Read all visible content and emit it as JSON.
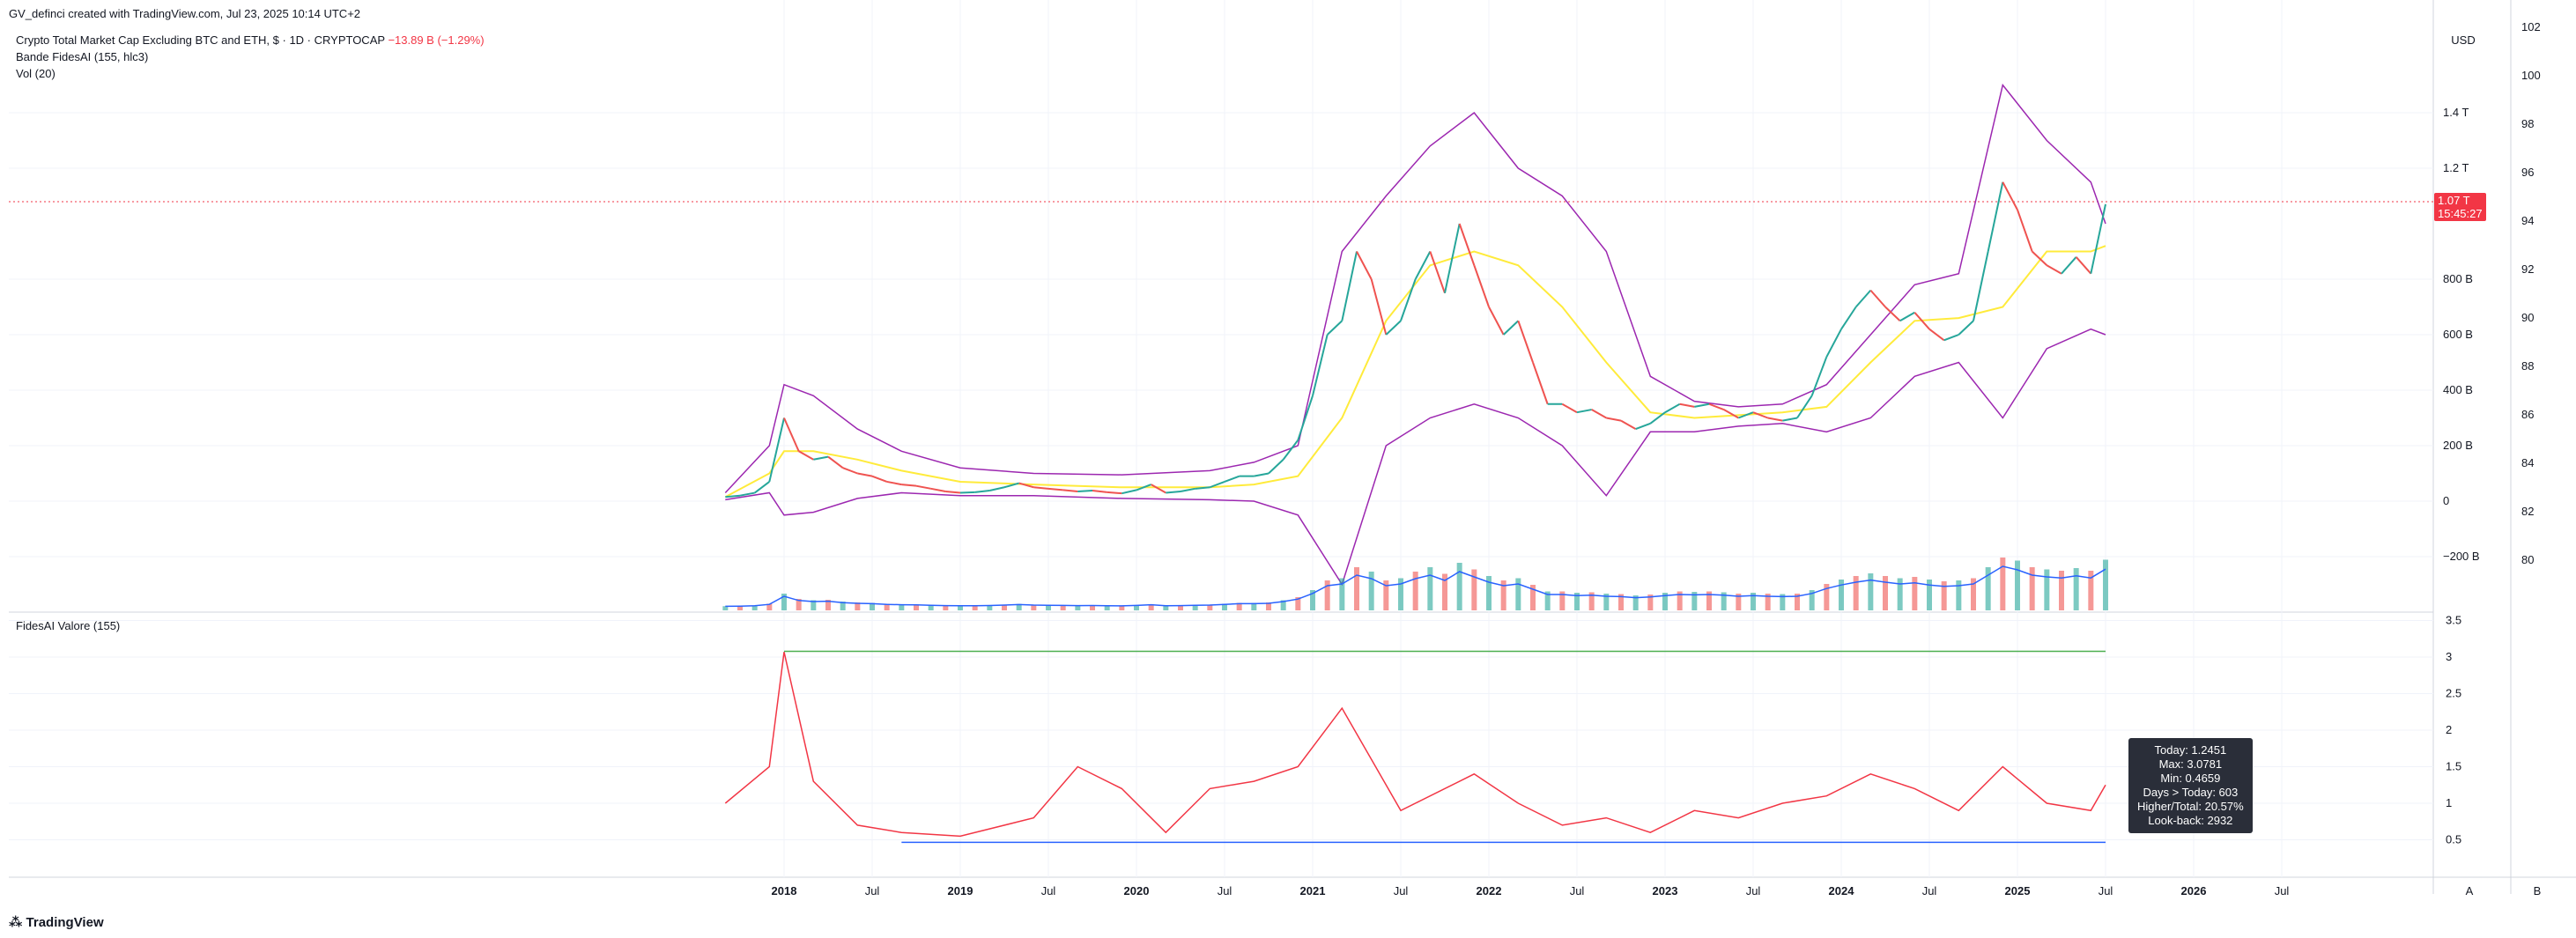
{
  "header": {
    "credit": "GV_definci created with TradingView.com, Jul 23, 2025 10:14 UTC+2",
    "symbol_title": "Crypto Total Market Cap Excluding BTC and ETH, $ · 1D · CRYPTOCAP",
    "change": "−13.89 B (−1.29%)",
    "indicator1": "Bande FidesAI (155, hlc3)",
    "indicator2": "Vol (20)",
    "pane2_title": "FidesAI Valore (155)"
  },
  "currency_button": "USD",
  "footer": {
    "logo_text": "TradingView",
    "auto_button": "A",
    "scale_button": "B"
  },
  "price_tag": {
    "value": "1.07 T",
    "countdown": "15:45:27"
  },
  "info_box": {
    "lines": [
      "Today: 1.2451",
      "Max: 3.0781",
      "Min: 0.4659",
      "Days > Today: 603",
      "Higher/Total: 20.57%",
      "Look-back: 2932"
    ]
  },
  "colors": {
    "price_up": "#26a69a",
    "price_down": "#ef5350",
    "bands": "#9c27b0",
    "basis": "#ffeb3b",
    "volume_ma": "#2962ff",
    "valore": "#f23645",
    "max_line": "#4caf50",
    "min_line": "#2962ff",
    "grid": "#f0f3fa"
  },
  "chart_data": [
    {
      "type": "line",
      "name": "price",
      "x": [
        "2017-09",
        "2017-10",
        "2017-11",
        "2017-12",
        "2018-01",
        "2018-02",
        "2018-03",
        "2018-04",
        "2018-05",
        "2018-06",
        "2018-07",
        "2018-08",
        "2018-09",
        "2018-10",
        "2018-11",
        "2018-12",
        "2019-01",
        "2019-02",
        "2019-03",
        "2019-04",
        "2019-05",
        "2019-06",
        "2019-07",
        "2019-08",
        "2019-09",
        "2019-10",
        "2019-11",
        "2019-12",
        "2020-01",
        "2020-02",
        "2020-03",
        "2020-04",
        "2020-05",
        "2020-06",
        "2020-07",
        "2020-08",
        "2020-09",
        "2020-10",
        "2020-11",
        "2020-12",
        "2021-01",
        "2021-02",
        "2021-03",
        "2021-04",
        "2021-05",
        "2021-06",
        "2021-07",
        "2021-08",
        "2021-09",
        "2021-10",
        "2021-11",
        "2021-12",
        "2022-01",
        "2022-02",
        "2022-03",
        "2022-04",
        "2022-05",
        "2022-06",
        "2022-07",
        "2022-08",
        "2022-09",
        "2022-10",
        "2022-11",
        "2022-12",
        "2023-01",
        "2023-02",
        "2023-03",
        "2023-04",
        "2023-05",
        "2023-06",
        "2023-07",
        "2023-08",
        "2023-09",
        "2023-10",
        "2023-11",
        "2023-12",
        "2024-01",
        "2024-02",
        "2024-03",
        "2024-04",
        "2024-05",
        "2024-06",
        "2024-07",
        "2024-08",
        "2024-09",
        "2024-10",
        "2024-11",
        "2024-12",
        "2025-01",
        "2025-02",
        "2025-03",
        "2025-04",
        "2025-05",
        "2025-06",
        "2025-07"
      ],
      "y": [
        15,
        20,
        30,
        70,
        300,
        180,
        150,
        160,
        120,
        100,
        90,
        70,
        60,
        55,
        45,
        35,
        30,
        32,
        38,
        50,
        65,
        50,
        45,
        40,
        35,
        38,
        32,
        28,
        40,
        60,
        30,
        35,
        45,
        50,
        70,
        90,
        90,
        100,
        150,
        220,
        380,
        600,
        650,
        900,
        800,
        600,
        650,
        800,
        900,
        750,
        1000,
        850,
        700,
        600,
        650,
        500,
        350,
        350,
        320,
        330,
        300,
        290,
        260,
        280,
        320,
        350,
        340,
        350,
        330,
        300,
        320,
        300,
        290,
        300,
        380,
        520,
        620,
        700,
        760,
        700,
        650,
        680,
        620,
        580,
        600,
        650,
        900,
        1150,
        1050,
        900,
        850,
        820,
        880,
        820,
        1070
      ],
      "ylim": [
        -200,
        1400
      ],
      "scale": "log"
    },
    {
      "type": "line",
      "name": "Bande FidesAI (155, hlc3)",
      "x": [
        "2017-09",
        "2017-12",
        "2018-01",
        "2018-03",
        "2018-06",
        "2018-09",
        "2019-01",
        "2019-06",
        "2019-12",
        "2020-06",
        "2020-09",
        "2020-12",
        "2021-03",
        "2021-06",
        "2021-09",
        "2021-12",
        "2022-03",
        "2022-06",
        "2022-09",
        "2022-12",
        "2023-03",
        "2023-06",
        "2023-09",
        "2023-12",
        "2024-03",
        "2024-06",
        "2024-09",
        "2024-12",
        "2025-03",
        "2025-06",
        "2025-07"
      ],
      "upper": [
        30,
        200,
        420,
        380,
        260,
        180,
        120,
        100,
        95,
        110,
        140,
        200,
        900,
        1100,
        1280,
        1400,
        1200,
        1100,
        900,
        450,
        360,
        340,
        350,
        420,
        600,
        780,
        820,
        1500,
        1300,
        1150,
        1000
      ],
      "basis": [
        15,
        100,
        180,
        180,
        150,
        110,
        70,
        60,
        50,
        50,
        60,
        90,
        300,
        650,
        850,
        900,
        850,
        700,
        500,
        320,
        300,
        310,
        320,
        340,
        500,
        650,
        660,
        700,
        900,
        900,
        920
      ],
      "lower": [
        5,
        30,
        -50,
        -40,
        10,
        30,
        20,
        20,
        10,
        5,
        0,
        -50,
        -300,
        200,
        300,
        350,
        300,
        200,
        20,
        250,
        250,
        270,
        280,
        250,
        300,
        450,
        500,
        300,
        550,
        620,
        600
      ]
    },
    {
      "type": "line",
      "name": "FidesAI Valore (155)",
      "x": [
        "2017-09",
        "2017-12",
        "2018-01",
        "2018-03",
        "2018-06",
        "2018-09",
        "2019-01",
        "2019-06",
        "2019-09",
        "2019-12",
        "2020-03",
        "2020-06",
        "2020-09",
        "2020-12",
        "2021-03",
        "2021-05",
        "2021-07",
        "2021-12",
        "2022-03",
        "2022-06",
        "2022-09",
        "2022-12",
        "2023-03",
        "2023-06",
        "2023-09",
        "2023-12",
        "2024-03",
        "2024-06",
        "2024-09",
        "2024-12",
        "2025-03",
        "2025-06",
        "2025-07"
      ],
      "y": [
        1.0,
        1.5,
        3.07,
        1.3,
        0.7,
        0.6,
        0.55,
        0.8,
        1.5,
        1.2,
        0.6,
        1.2,
        1.3,
        1.5,
        2.3,
        1.6,
        0.9,
        1.4,
        1.0,
        0.7,
        0.8,
        0.6,
        0.9,
        0.8,
        1.0,
        1.1,
        1.4,
        1.2,
        0.9,
        1.5,
        1.0,
        0.9,
        1.25
      ],
      "max": 3.0781,
      "min": 0.4659,
      "ylim": [
        0,
        3.5
      ],
      "yticks": [
        "3.5",
        "3",
        "2.5",
        "2",
        "1.5",
        "1",
        "0.5"
      ]
    }
  ],
  "axes": {
    "price_ticks": [
      "1.4 T",
      "1.2 T",
      "800 B",
      "600 B",
      "400 B",
      "200 B",
      "0",
      "−200 B"
    ],
    "rsi_ticks": [
      "102",
      "100",
      "98",
      "96",
      "94",
      "92",
      "90",
      "88",
      "86",
      "84",
      "82",
      "80"
    ],
    "x_ticks": [
      "2018",
      "Jul",
      "2019",
      "Jul",
      "2020",
      "Jul",
      "2021",
      "Jul",
      "2022",
      "Jul",
      "2023",
      "Jul",
      "2024",
      "Jul",
      "2025",
      "Jul",
      "2026",
      "Jul"
    ]
  }
}
